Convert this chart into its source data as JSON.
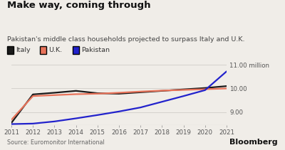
{
  "title": "Make way, coming through",
  "subtitle": "Pakistan's middle class households projected to surpass Italy and U.K.",
  "source": "Source: Euromonitor International",
  "branding": "Bloomberg",
  "years": [
    2011,
    2012,
    2013,
    2014,
    2015,
    2016,
    2017,
    2018,
    2019,
    2020,
    2021
  ],
  "italy": [
    8.55,
    9.75,
    9.82,
    9.9,
    9.8,
    9.78,
    9.84,
    9.9,
    9.96,
    10.02,
    10.1
  ],
  "uk": [
    8.68,
    9.68,
    9.72,
    9.76,
    9.78,
    9.82,
    9.87,
    9.91,
    9.94,
    9.97,
    10.0
  ],
  "pakistan": [
    8.5,
    8.52,
    8.61,
    8.74,
    8.88,
    9.03,
    9.2,
    9.44,
    9.68,
    9.93,
    10.72
  ],
  "italy_color": "#1a1a1a",
  "uk_color": "#e8735a",
  "pakistan_color": "#2222cc",
  "ylim": [
    8.45,
    11.2
  ],
  "yticks": [
    9.0,
    10.0,
    11.0
  ],
  "ytick_labels": [
    "9.00",
    "10.00",
    "11.00 million"
  ],
  "background_color": "#f0ede8",
  "plot_bg_color": "#f0ede8",
  "grid_color": "#d0cdc8",
  "line_width": 1.6,
  "title_fontsize": 9.5,
  "subtitle_fontsize": 6.8,
  "legend_fontsize": 6.8,
  "tick_fontsize": 6.2,
  "source_fontsize": 5.8,
  "bloomberg_fontsize": 8.0
}
